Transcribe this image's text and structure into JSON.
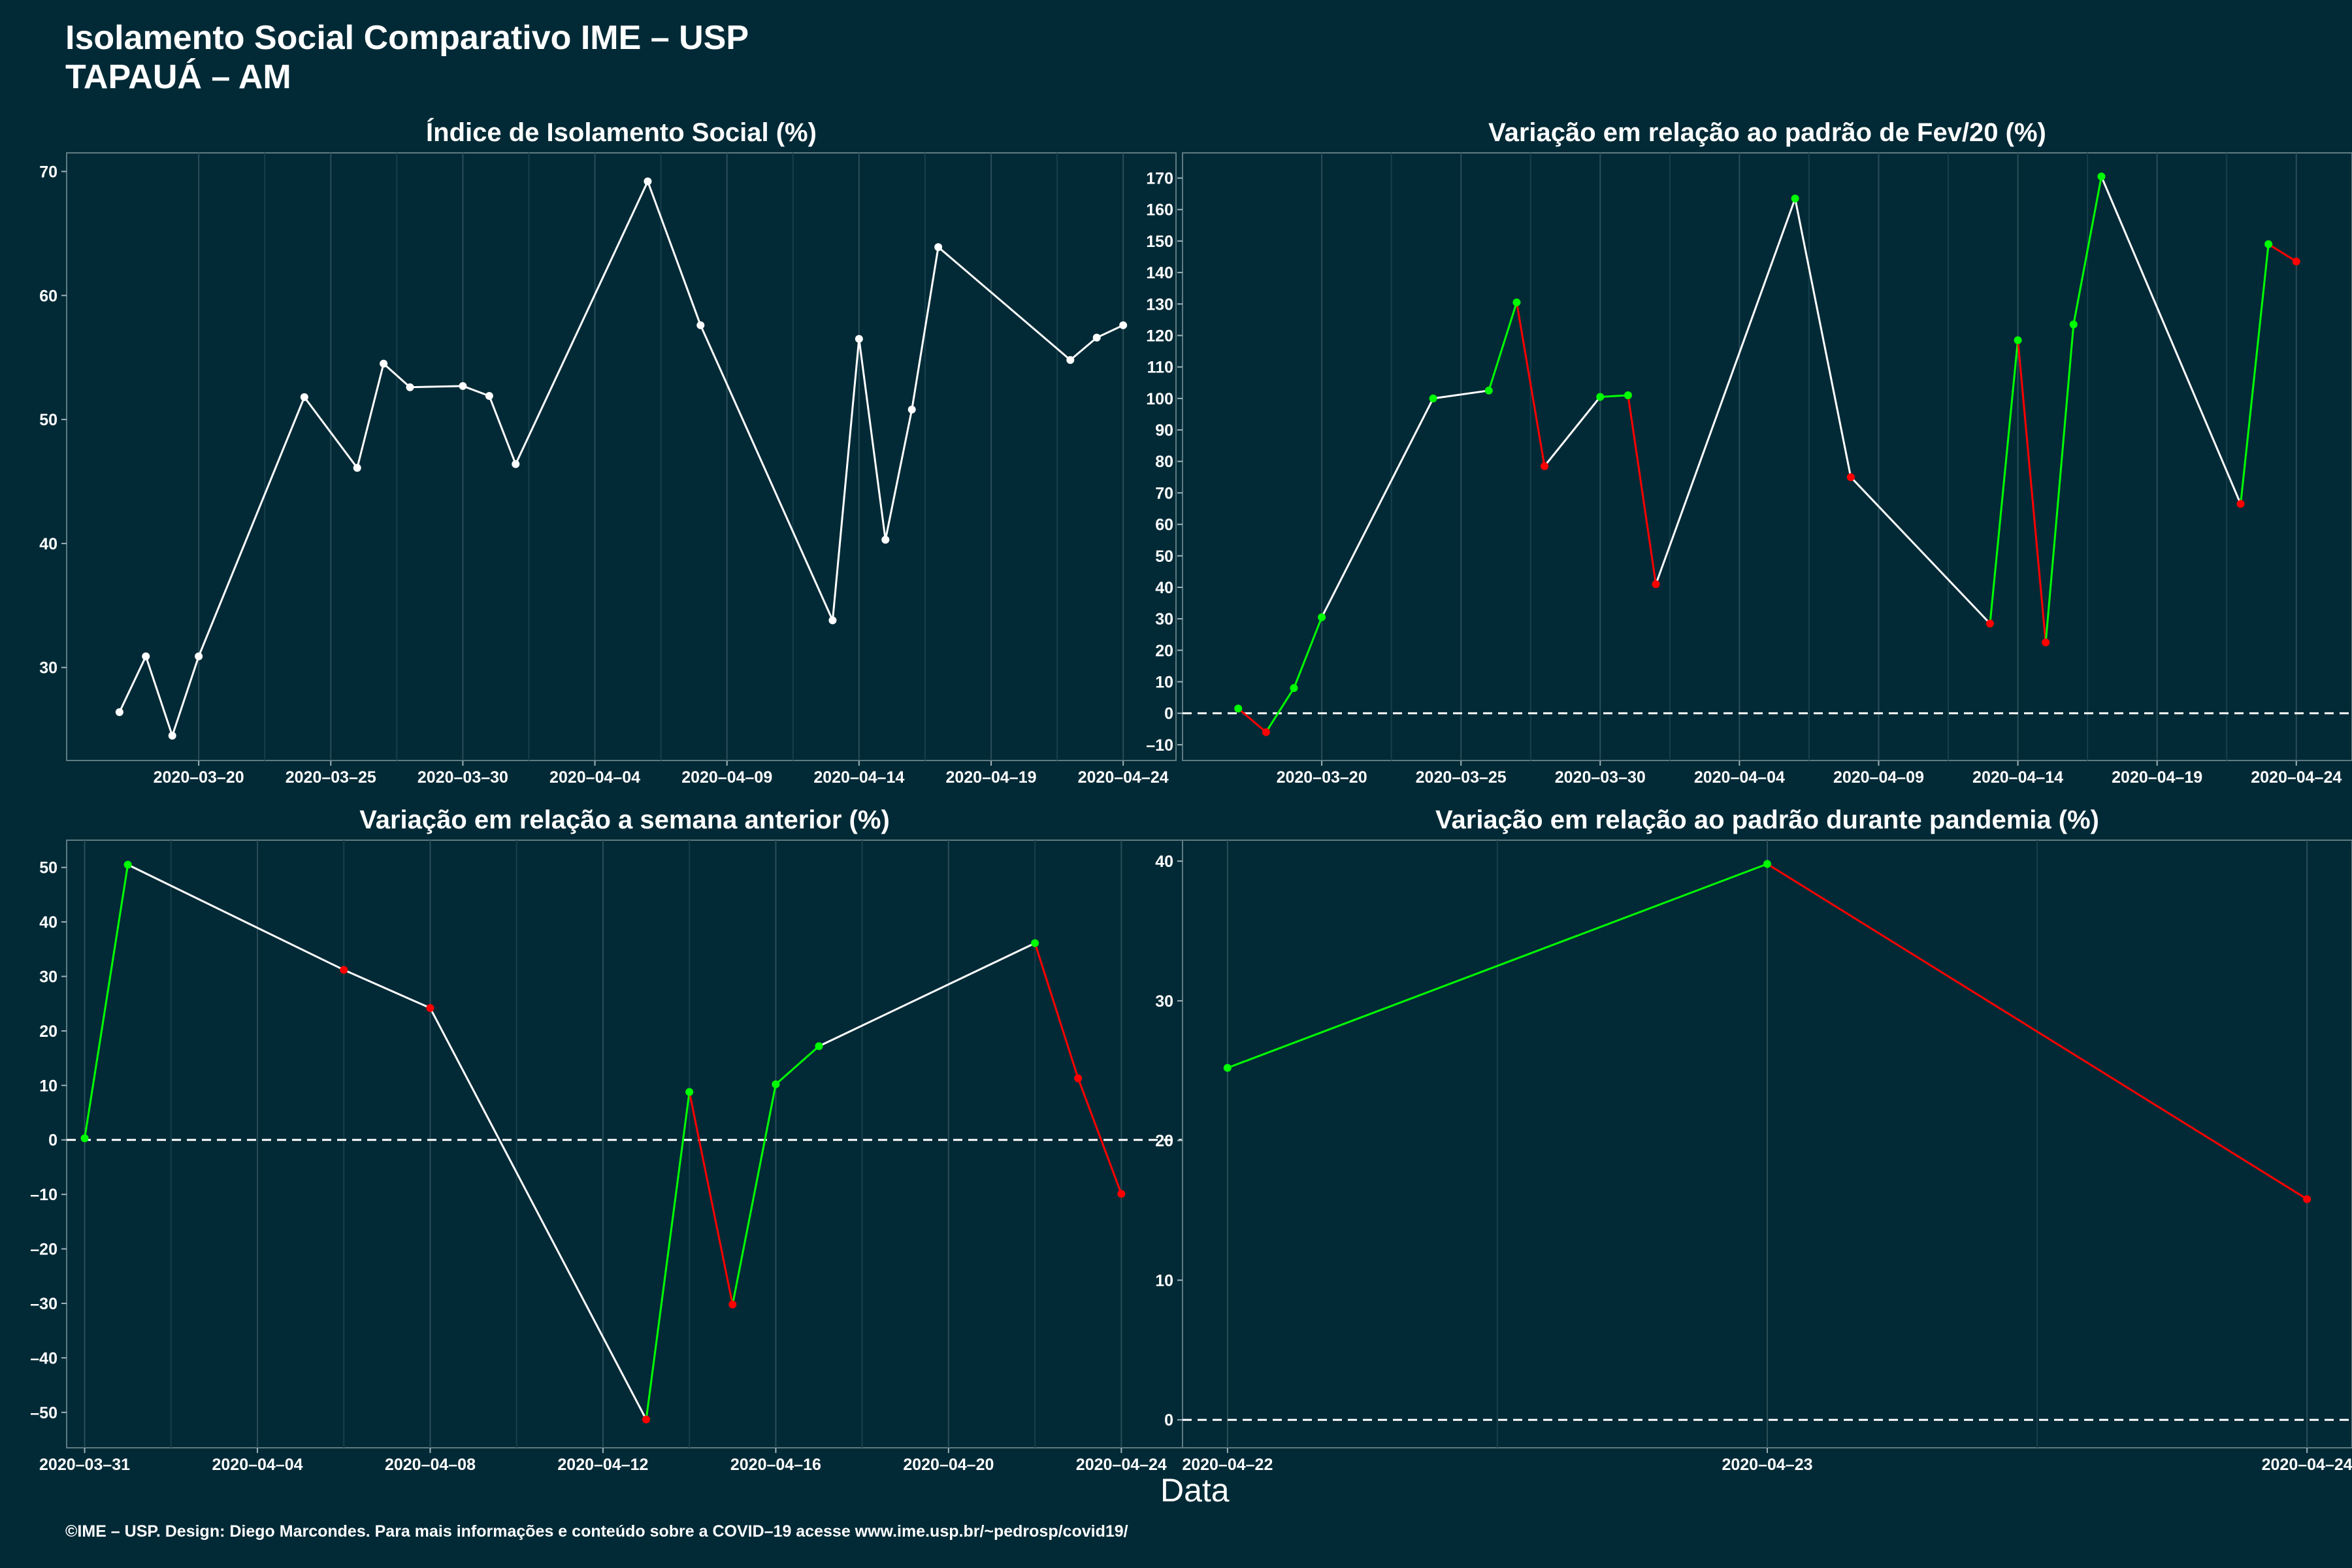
{
  "header": {
    "title_line1": "Isolamento Social Comparativo IME – USP",
    "title_line2": "TAPAUÁ – AM"
  },
  "x_axis_label": "Data",
  "footer": "©IME – USP. Design: Diego Marcondes. Para mais informações e conteúdo sobre a COVID–19 acesse www.ime.usp.br/~pedrosp/covid19/",
  "colors": {
    "background": "#022a36",
    "line": "#ffffff",
    "increase": "#00ff00",
    "decrease": "#ff0000",
    "gridline": "#2a4d58"
  },
  "chart_data": [
    {
      "type": "line",
      "title": "Índice de Isolamento Social (%)",
      "x_type": "date",
      "x_ticks": [
        "2020-03-20",
        "2020-03-25",
        "2020-03-30",
        "2020-04-04",
        "2020-04-09",
        "2020-04-14",
        "2020-04-19",
        "2020-04-24"
      ],
      "y_ticks": [
        30,
        40,
        50,
        60,
        70
      ],
      "xlim": [
        "2020-03-15",
        "2020-04-26"
      ],
      "ylim": [
        22.5,
        71.5
      ],
      "zero_line": false,
      "color_mode": "white",
      "x": [
        "2020-03-17",
        "2020-03-18",
        "2020-03-19",
        "2020-03-20",
        "2020-03-24",
        "2020-03-26",
        "2020-03-27",
        "2020-03-28",
        "2020-03-30",
        "2020-03-31",
        "2020-04-01",
        "2020-04-06",
        "2020-04-08",
        "2020-04-13",
        "2020-04-14",
        "2020-04-15",
        "2020-04-16",
        "2020-04-17",
        "2020-04-22",
        "2020-04-23",
        "2020-04-24"
      ],
      "y": [
        26.4,
        30.9,
        24.5,
        30.9,
        51.8,
        46.1,
        54.5,
        52.6,
        52.7,
        51.9,
        46.4,
        69.2,
        57.6,
        33.8,
        56.5,
        40.3,
        50.8,
        63.9,
        54.8,
        56.6,
        57.6
      ]
    },
    {
      "type": "line",
      "title": "Variação em relação ao padrão de Fev/20 (%)",
      "x_type": "date",
      "x_ticks": [
        "2020-03-20",
        "2020-03-25",
        "2020-03-30",
        "2020-04-04",
        "2020-04-09",
        "2020-04-14",
        "2020-04-19",
        "2020-04-24"
      ],
      "y_ticks": [
        -10,
        0,
        10,
        20,
        30,
        40,
        50,
        60,
        70,
        80,
        90,
        100,
        110,
        120,
        130,
        140,
        150,
        160,
        170
      ],
      "xlim": [
        "2020-03-15",
        "2020-04-26"
      ],
      "ylim": [
        -15,
        178
      ],
      "zero_line": true,
      "color_mode": "trend",
      "x": [
        "2020-03-17",
        "2020-03-18",
        "2020-03-19",
        "2020-03-20",
        "2020-03-24",
        "2020-03-26",
        "2020-03-27",
        "2020-03-28",
        "2020-03-30",
        "2020-03-31",
        "2020-04-01",
        "2020-04-06",
        "2020-04-08",
        "2020-04-13",
        "2020-04-14",
        "2020-04-15",
        "2020-04-16",
        "2020-04-17",
        "2020-04-22",
        "2020-04-23",
        "2020-04-24"
      ],
      "y": [
        1.5,
        -6,
        8,
        30.5,
        100,
        102.5,
        130.5,
        78.5,
        100.5,
        101,
        41,
        163.5,
        75,
        28.5,
        118.5,
        22.5,
        123.5,
        170.5,
        66.5,
        149,
        143.5
      ]
    },
    {
      "type": "line",
      "title": "Variação em relação a semana anterior (%)",
      "x_type": "date",
      "x_ticks": [
        "2020-03-31",
        "2020-04-04",
        "2020-04-08",
        "2020-04-12",
        "2020-04-16",
        "2020-04-20",
        "2020-04-24"
      ],
      "y_ticks": [
        -50,
        -40,
        -30,
        -20,
        -10,
        0,
        10,
        20,
        30,
        40,
        50
      ],
      "xlim": [
        "2020-03-30 14:00",
        "2020-04-25 10:00"
      ],
      "ylim": [
        -56.5,
        55
      ],
      "zero_line": true,
      "color_mode": "trend",
      "x": [
        "2020-03-31",
        "2020-04-01",
        "2020-04-06",
        "2020-04-08",
        "2020-04-13",
        "2020-04-14",
        "2020-04-15",
        "2020-04-16",
        "2020-04-17",
        "2020-04-22",
        "2020-04-23",
        "2020-04-24"
      ],
      "y": [
        0.3,
        50.5,
        31.2,
        24.2,
        -51.3,
        8.8,
        -30.2,
        10.2,
        17.2,
        36.1,
        11.3,
        -9.9
      ]
    },
    {
      "type": "line",
      "title": "Variação em relação ao padrão durante pandemia (%)",
      "x_type": "date",
      "x_ticks": [
        "2020-04-22",
        "2020-04-23",
        "2020-04-24"
      ],
      "y_ticks": [
        0,
        10,
        20,
        30,
        40
      ],
      "xlim": [
        "2020-04-21 22:00",
        "2020-04-24 02:00"
      ],
      "ylim": [
        -2,
        41.5
      ],
      "zero_line": true,
      "color_mode": "trend",
      "x": [
        "2020-04-22",
        "2020-04-23",
        "2020-04-24"
      ],
      "y": [
        25.2,
        39.8,
        15.8
      ]
    }
  ]
}
